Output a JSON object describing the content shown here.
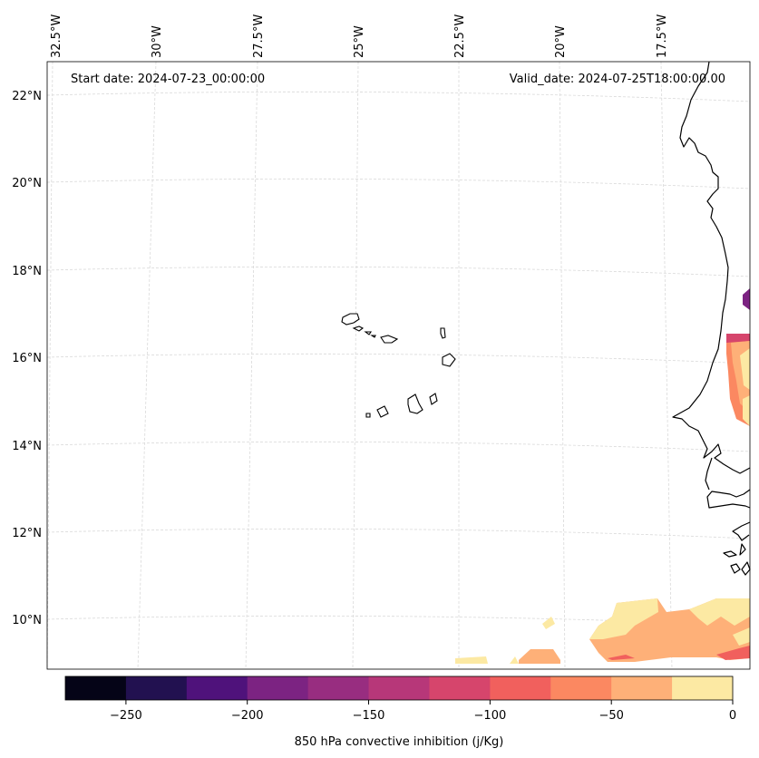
{
  "map": {
    "start_date": "Start date: 2024-07-23_00:00:00",
    "valid_date": "Valid_date: 2024-07-25T18:00:00.00",
    "lon_labels": [
      "32.5°W",
      "30°W",
      "27.5°W",
      "25°W",
      "22.5°W",
      "20°W",
      "17.5°W"
    ],
    "lat_labels": [
      "22°N",
      "20°N",
      "18°N",
      "16°N",
      "14°N",
      "12°N",
      "10°N"
    ]
  },
  "colorbar": {
    "label": "850 hPa convective inhibition (j/Kg)",
    "ticks": [
      "−250",
      "−200",
      "−150",
      "−100",
      "−50",
      "0"
    ],
    "colors": [
      "#050417",
      "#221150",
      "#4f127b",
      "#7c2382",
      "#982d80",
      "#b73779",
      "#d6456c",
      "#f1605d",
      "#fb8861",
      "#feb078",
      "#fce9a3"
    ]
  }
}
